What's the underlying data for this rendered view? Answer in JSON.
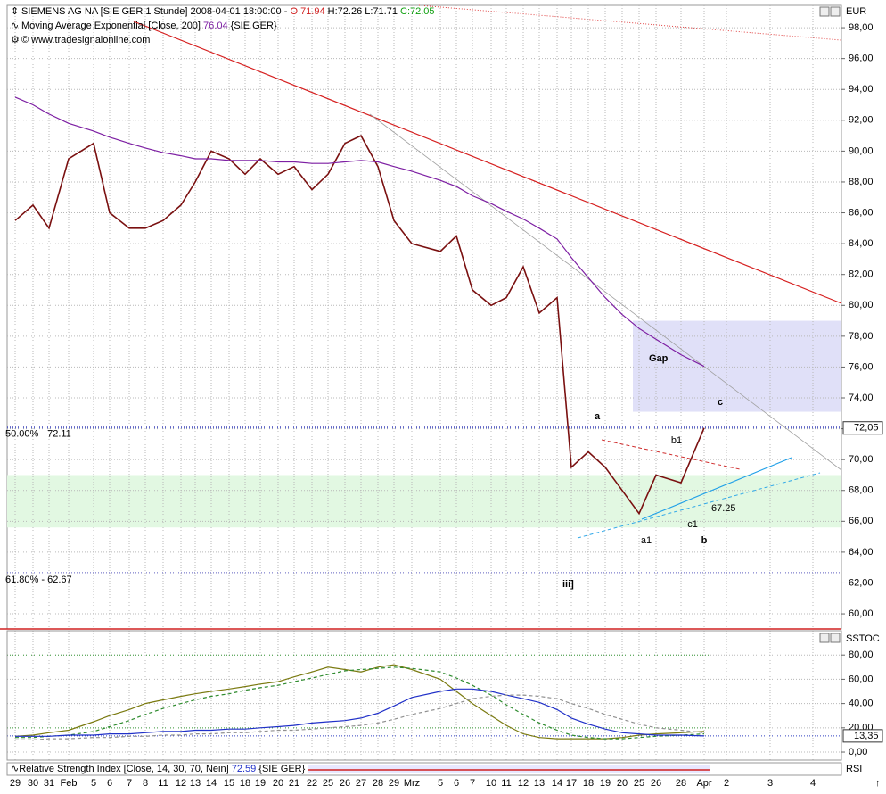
{
  "header": {
    "symbol": "SIEMENS AG NA [SIE GER  1 Stunde] 2008-04-01 18:00:00 -",
    "open": "O:71.94",
    "high_low": "H:72.26 L:71.71",
    "close": "C:72.05",
    "indicator": "Moving Average Exponential [Close, 200]",
    "indicator_value": "76.04",
    "indicator_source": "{SIE GER}",
    "copyright": "© www.tradesignalonline.com",
    "currency": "EUR",
    "lower_panel": "SSTOC",
    "rsi": "Relative Strength Index [Close, 14, 30, 70, Nein]",
    "rsi_value": "72.59",
    "rsi_source": "{SIE GER}",
    "rsi_axis": "RSI"
  },
  "annotations": {
    "gap": "Gap",
    "waves": [
      "a",
      "b",
      "c",
      "a1",
      "b1",
      "c1",
      "iii]"
    ],
    "support": "67.25"
  },
  "chart_data": [
    {
      "type": "line",
      "categories": [
        "29",
        "30",
        "31",
        "Feb",
        "5",
        "6",
        "7",
        "8",
        "11",
        "12",
        "13",
        "14",
        "15",
        "18",
        "19",
        "20",
        "21",
        "22",
        "25",
        "26",
        "27",
        "28",
        "29",
        "Mrz",
        "5",
        "6",
        "7",
        "10",
        "11",
        "12",
        "13",
        "14",
        "17",
        "18",
        "19",
        "20",
        "25",
        "26",
        "28",
        "Apr",
        "2",
        "3",
        "4"
      ],
      "series": [
        {
          "name": "Close",
          "color": "#7a1010",
          "values": [
            85.5,
            86.5,
            85,
            89.5,
            90.5,
            86,
            85,
            85,
            85.5,
            86.5,
            88,
            90,
            89.5,
            88.5,
            89.5,
            88.5,
            89,
            87.5,
            88.5,
            90.5,
            91,
            89,
            85.5,
            84,
            83.5,
            84.5,
            81,
            80,
            80.5,
            82.5,
            79.5,
            80.5,
            69.5,
            70.5,
            69.5,
            68,
            66.5,
            69,
            68.5,
            72.05,
            null,
            null,
            null
          ]
        },
        {
          "name": "EMA 200",
          "color": "#7d1fa3",
          "values": [
            93.5,
            93,
            92.4,
            91.8,
            91.3,
            90.9,
            90.5,
            90.2,
            89.9,
            89.7,
            89.5,
            89.5,
            89.4,
            89.4,
            89.4,
            89.3,
            89.3,
            89.2,
            89.2,
            89.3,
            89.4,
            89.3,
            89,
            88.7,
            88.1,
            87.7,
            87.1,
            86.6,
            86.1,
            85.6,
            85,
            84.3,
            83.1,
            81.8,
            80.5,
            79.4,
            78.5,
            77.8,
            76.8,
            76.04,
            null,
            null,
            null
          ]
        }
      ],
      "ylim": [
        59.02,
        99.45
      ],
      "yticks": [
        {
          "value": 60,
          "label": "60,00"
        },
        {
          "value": 62,
          "label": "62,00"
        },
        {
          "value": 64,
          "label": "64,00"
        },
        {
          "value": 66,
          "label": "66,00"
        },
        {
          "value": 68,
          "label": "68,00"
        },
        {
          "value": 70,
          "label": "70,00"
        },
        {
          "value": 72,
          "label": "72,00"
        },
        {
          "value": 74,
          "label": "74,00"
        },
        {
          "value": 76,
          "label": "76,00"
        },
        {
          "value": 78,
          "label": "78,00"
        },
        {
          "value": 80,
          "label": "80,00"
        },
        {
          "value": 82,
          "label": "82,00"
        },
        {
          "value": 84,
          "label": "84,00"
        },
        {
          "value": 86,
          "label": "86,00"
        },
        {
          "value": 88,
          "label": "88,00"
        },
        {
          "value": 90,
          "label": "90,00"
        },
        {
          "value": 92,
          "label": "92,00"
        },
        {
          "value": 94,
          "label": "94,00"
        },
        {
          "value": 96,
          "label": "96,00"
        },
        {
          "value": 98,
          "label": "98,00"
        }
      ],
      "last_price": {
        "value": 72.05,
        "label": "72,05"
      },
      "levels": [
        {
          "value": 72.11,
          "label": "50.00% - 72.11"
        },
        {
          "value": 62.67,
          "label": "61.80% - 62.67"
        }
      ],
      "zones": [
        {
          "range": [
            73.1,
            79
          ],
          "color": "#e0e0f8"
        },
        {
          "range": [
            65.6,
            69
          ],
          "color": "#e2f8e2"
        }
      ],
      "grid": true
    },
    {
      "type": "line",
      "series": [
        {
          "name": "%K",
          "color": "#7a7a10",
          "dash": false,
          "values": [
            13,
            14,
            16,
            18,
            25,
            30,
            35,
            40,
            43,
            46,
            48,
            50,
            52,
            54,
            56,
            58,
            62,
            66,
            70,
            68,
            66,
            70,
            72,
            68,
            60,
            50,
            40,
            30,
            22,
            15,
            12,
            11,
            11,
            11,
            11,
            12,
            14,
            15,
            16,
            17,
            null,
            null,
            null
          ]
        },
        {
          "name": "%D",
          "color": "#2e8b2e",
          "dash": true,
          "values": [
            12,
            12,
            13,
            14,
            17,
            21,
            26,
            31,
            36,
            40,
            43,
            46,
            48,
            51,
            53,
            55,
            58,
            61,
            64,
            67,
            68,
            69,
            70,
            69,
            66,
            61,
            55,
            47,
            39,
            31,
            24,
            18,
            14,
            12,
            11,
            11,
            12,
            13,
            14,
            15,
            null,
            null,
            null
          ]
        },
        {
          "name": "Slow",
          "color": "#2030c8",
          "dash": false,
          "values": [
            13,
            13,
            13,
            14,
            14,
            15,
            15,
            16,
            17,
            17,
            18,
            18,
            19,
            19,
            20,
            21,
            22,
            24,
            25,
            26,
            28,
            32,
            38,
            45,
            50,
            52,
            52,
            50,
            47,
            44,
            41,
            35,
            28,
            23,
            19,
            16,
            15,
            14,
            14,
            13.35,
            null,
            null,
            null
          ]
        },
        {
          "name": "Signal",
          "color": "#909090",
          "dash": true,
          "values": [
            10,
            10,
            11,
            11,
            12,
            12,
            13,
            13,
            14,
            14,
            15,
            15,
            16,
            16,
            17,
            18,
            18,
            19,
            20,
            21,
            22,
            24,
            27,
            31,
            36,
            40,
            44,
            46,
            47,
            47,
            46,
            44,
            40,
            36,
            31,
            27,
            23,
            20,
            18,
            16,
            null,
            null,
            null
          ]
        }
      ],
      "ylim": [
        -6.6,
        100
      ],
      "yticks": [
        {
          "value": 0,
          "label": "0,00"
        },
        {
          "value": 20,
          "label": "20,00"
        },
        {
          "value": 40,
          "label": "40,00"
        },
        {
          "value": 60,
          "label": "60,00"
        },
        {
          "value": 80,
          "label": "80,00"
        }
      ],
      "last_value": {
        "value": 13.35,
        "label": "13,35"
      },
      "grid": true
    }
  ]
}
